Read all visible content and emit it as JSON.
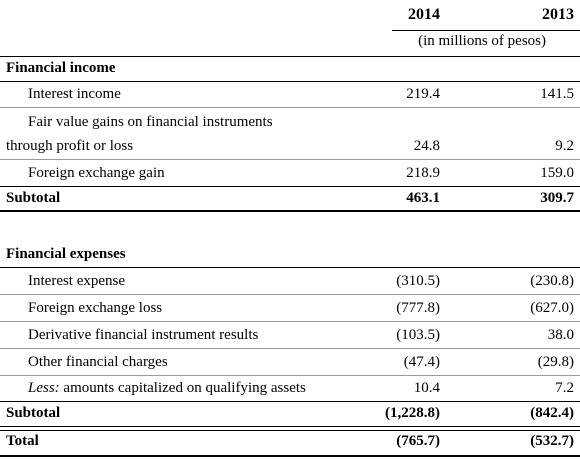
{
  "header": {
    "year_2014": "2014",
    "year_2013": "2013",
    "units": "(in millions of pesos)"
  },
  "financial_income": {
    "title": "Financial income",
    "rows": [
      {
        "label": "Interest income",
        "v2014": "219.4",
        "v2013": "141.5"
      },
      {
        "label_line1": "Fair value gains on financial instruments",
        "label_line2": "through profit or loss",
        "v2014": "24.8",
        "v2013": "9.2"
      },
      {
        "label": "Foreign exchange gain",
        "v2014": "218.9",
        "v2013": "159.0"
      }
    ],
    "subtotal": {
      "label": "Subtotal",
      "v2014": "463.1",
      "v2013": "309.7"
    }
  },
  "financial_expenses": {
    "title": "Financial expenses",
    "rows": [
      {
        "label": "Interest expense",
        "v2014": "(310.5)",
        "v2013": "(230.8)"
      },
      {
        "label": "Foreign exchange loss",
        "v2014": "(777.8)",
        "v2013": "(627.0)"
      },
      {
        "label": "Derivative financial instrument results",
        "v2014": "(103.5)",
        "v2013": "38.0"
      },
      {
        "label": "Other financial charges",
        "v2014": "(47.4)",
        "v2013": "(29.8)"
      },
      {
        "label_prefix": "Less:",
        "label": "amounts capitalized on qualifying assets",
        "v2014": "10.4",
        "v2013": "7.2"
      }
    ],
    "subtotal": {
      "label": "Subtotal",
      "v2014": "(1,228.8)",
      "v2013": "(842.4)"
    }
  },
  "total": {
    "label": "Total",
    "v2014": "(765.7)",
    "v2013": "(532.7)"
  }
}
